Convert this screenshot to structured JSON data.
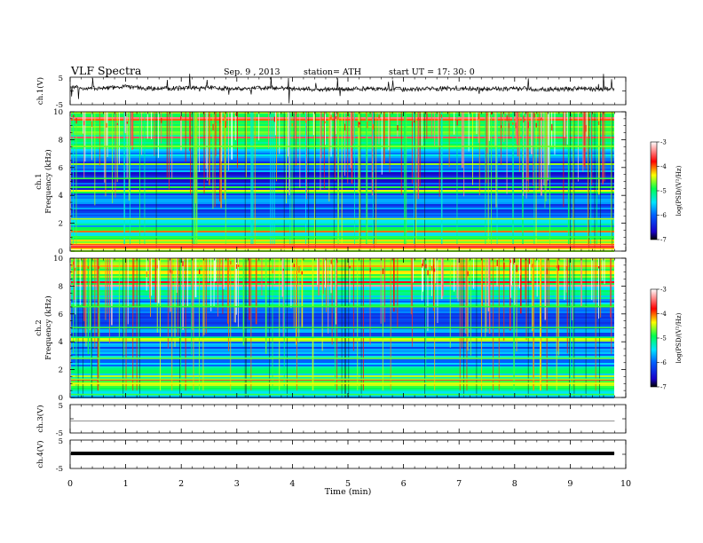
{
  "header": {
    "title": "VLF  Spectra",
    "date": "Sep. 9  , 2013",
    "station": "station= ATH",
    "start": "start  UT  =    17: 30: 0"
  },
  "colors": {
    "colormap": [
      "#000000",
      "#0000ff",
      "#00e5ff",
      "#00ff50",
      "#ffff00",
      "#ff0000",
      "#ffffff"
    ]
  },
  "chart_data": [
    {
      "type": "line",
      "name": "ch1",
      "ylabel": "ch.1(V)",
      "yticks": [
        "5",
        "-5"
      ],
      "ylim": [
        -5,
        5
      ],
      "x": [
        0,
        0.5,
        1,
        1.5,
        2,
        2.5,
        3,
        3.5,
        4,
        4.5,
        5,
        5.5,
        6,
        6.5,
        7,
        7.5,
        8,
        8.5,
        9,
        9.5,
        9.8
      ],
      "y": [
        1.3,
        0.9,
        1.5,
        0.8,
        1.0,
        1.2,
        0.7,
        1.1,
        0.9,
        0.5,
        0.7,
        0.9,
        0.6,
        0.8,
        1.0,
        0.7,
        0.9,
        0.6,
        0.8,
        0.7,
        0.8
      ]
    },
    {
      "type": "heatmap",
      "name": "ch1-spectrogram",
      "ylabel_channel": "ch.1",
      "ylabel": "Frequency  (kHz)",
      "yticks": [
        "0",
        "2",
        "4",
        "6",
        "8",
        "10"
      ],
      "ylim": [
        0,
        10
      ],
      "xlim": [
        0,
        9.8
      ],
      "colorbar": {
        "label": "log(PSD/(V²/Hz)",
        "ticks": [
          "-3",
          "-4",
          "-5",
          "-6",
          "-7"
        ],
        "range": [
          -7,
          -3
        ]
      },
      "band_profile": [
        {
          "f": 0.0,
          "log_psd": -4.6
        },
        {
          "f": 0.3,
          "log_psd": -3.4
        },
        {
          "f": 0.6,
          "log_psd": -4.4
        },
        {
          "f": 1.0,
          "log_psd": -5.2
        },
        {
          "f": 2.0,
          "log_psd": -5.4
        },
        {
          "f": 3.0,
          "log_psd": -6.2
        },
        {
          "f": 4.0,
          "log_psd": -6.1
        },
        {
          "f": 5.0,
          "log_psd": -6.4
        },
        {
          "f": 6.0,
          "log_psd": -6.3
        },
        {
          "f": 7.0,
          "log_psd": -5.5
        },
        {
          "f": 8.0,
          "log_psd": -5.0
        },
        {
          "f": 9.0,
          "log_psd": -4.7
        },
        {
          "f": 10.0,
          "log_psd": -4.5
        }
      ]
    },
    {
      "type": "heatmap",
      "name": "ch2-spectrogram",
      "ylabel_channel": "ch.2",
      "ylabel": "Frequency  (kHz)",
      "yticks": [
        "0",
        "2",
        "4",
        "6",
        "8",
        "10"
      ],
      "ylim": [
        0,
        10
      ],
      "xlim": [
        0,
        9.8
      ],
      "colorbar": {
        "label": "log(PSD/(V²/Hz)",
        "ticks": [
          "-3",
          "-4",
          "-5",
          "-6",
          "-7"
        ],
        "range": [
          -7,
          -3
        ]
      },
      "band_profile": [
        {
          "f": 0.0,
          "log_psd": -5.6
        },
        {
          "f": 0.5,
          "log_psd": -5.4
        },
        {
          "f": 1.0,
          "log_psd": -4.7
        },
        {
          "f": 2.0,
          "log_psd": -5.5
        },
        {
          "f": 3.0,
          "log_psd": -5.8
        },
        {
          "f": 4.0,
          "log_psd": -5.9
        },
        {
          "f": 5.0,
          "log_psd": -6.0
        },
        {
          "f": 6.0,
          "log_psd": -6.3
        },
        {
          "f": 7.0,
          "log_psd": -5.6
        },
        {
          "f": 8.0,
          "log_psd": -5.0
        },
        {
          "f": 9.0,
          "log_psd": -4.7
        },
        {
          "f": 10.0,
          "log_psd": -4.5
        }
      ]
    },
    {
      "type": "line",
      "name": "ch3",
      "ylabel": "ch.3(V)",
      "yticks": [
        "5",
        "-5"
      ],
      "ylim": [
        -5,
        5
      ],
      "x": [
        0,
        9.8
      ],
      "y": [
        -0.7,
        -0.7
      ]
    },
    {
      "type": "line",
      "name": "ch4",
      "ylabel": "ch.4(V)",
      "yticks": [
        "5",
        "-5"
      ],
      "ylim": [
        -5,
        5
      ],
      "x": [
        0,
        9.8
      ],
      "y": [
        0.3,
        0.3
      ]
    }
  ],
  "xaxis": {
    "label": "Time  (min)",
    "ticks": [
      "0",
      "1",
      "2",
      "3",
      "4",
      "5",
      "6",
      "7",
      "8",
      "9",
      "10"
    ],
    "xlim": [
      0,
      10
    ]
  }
}
